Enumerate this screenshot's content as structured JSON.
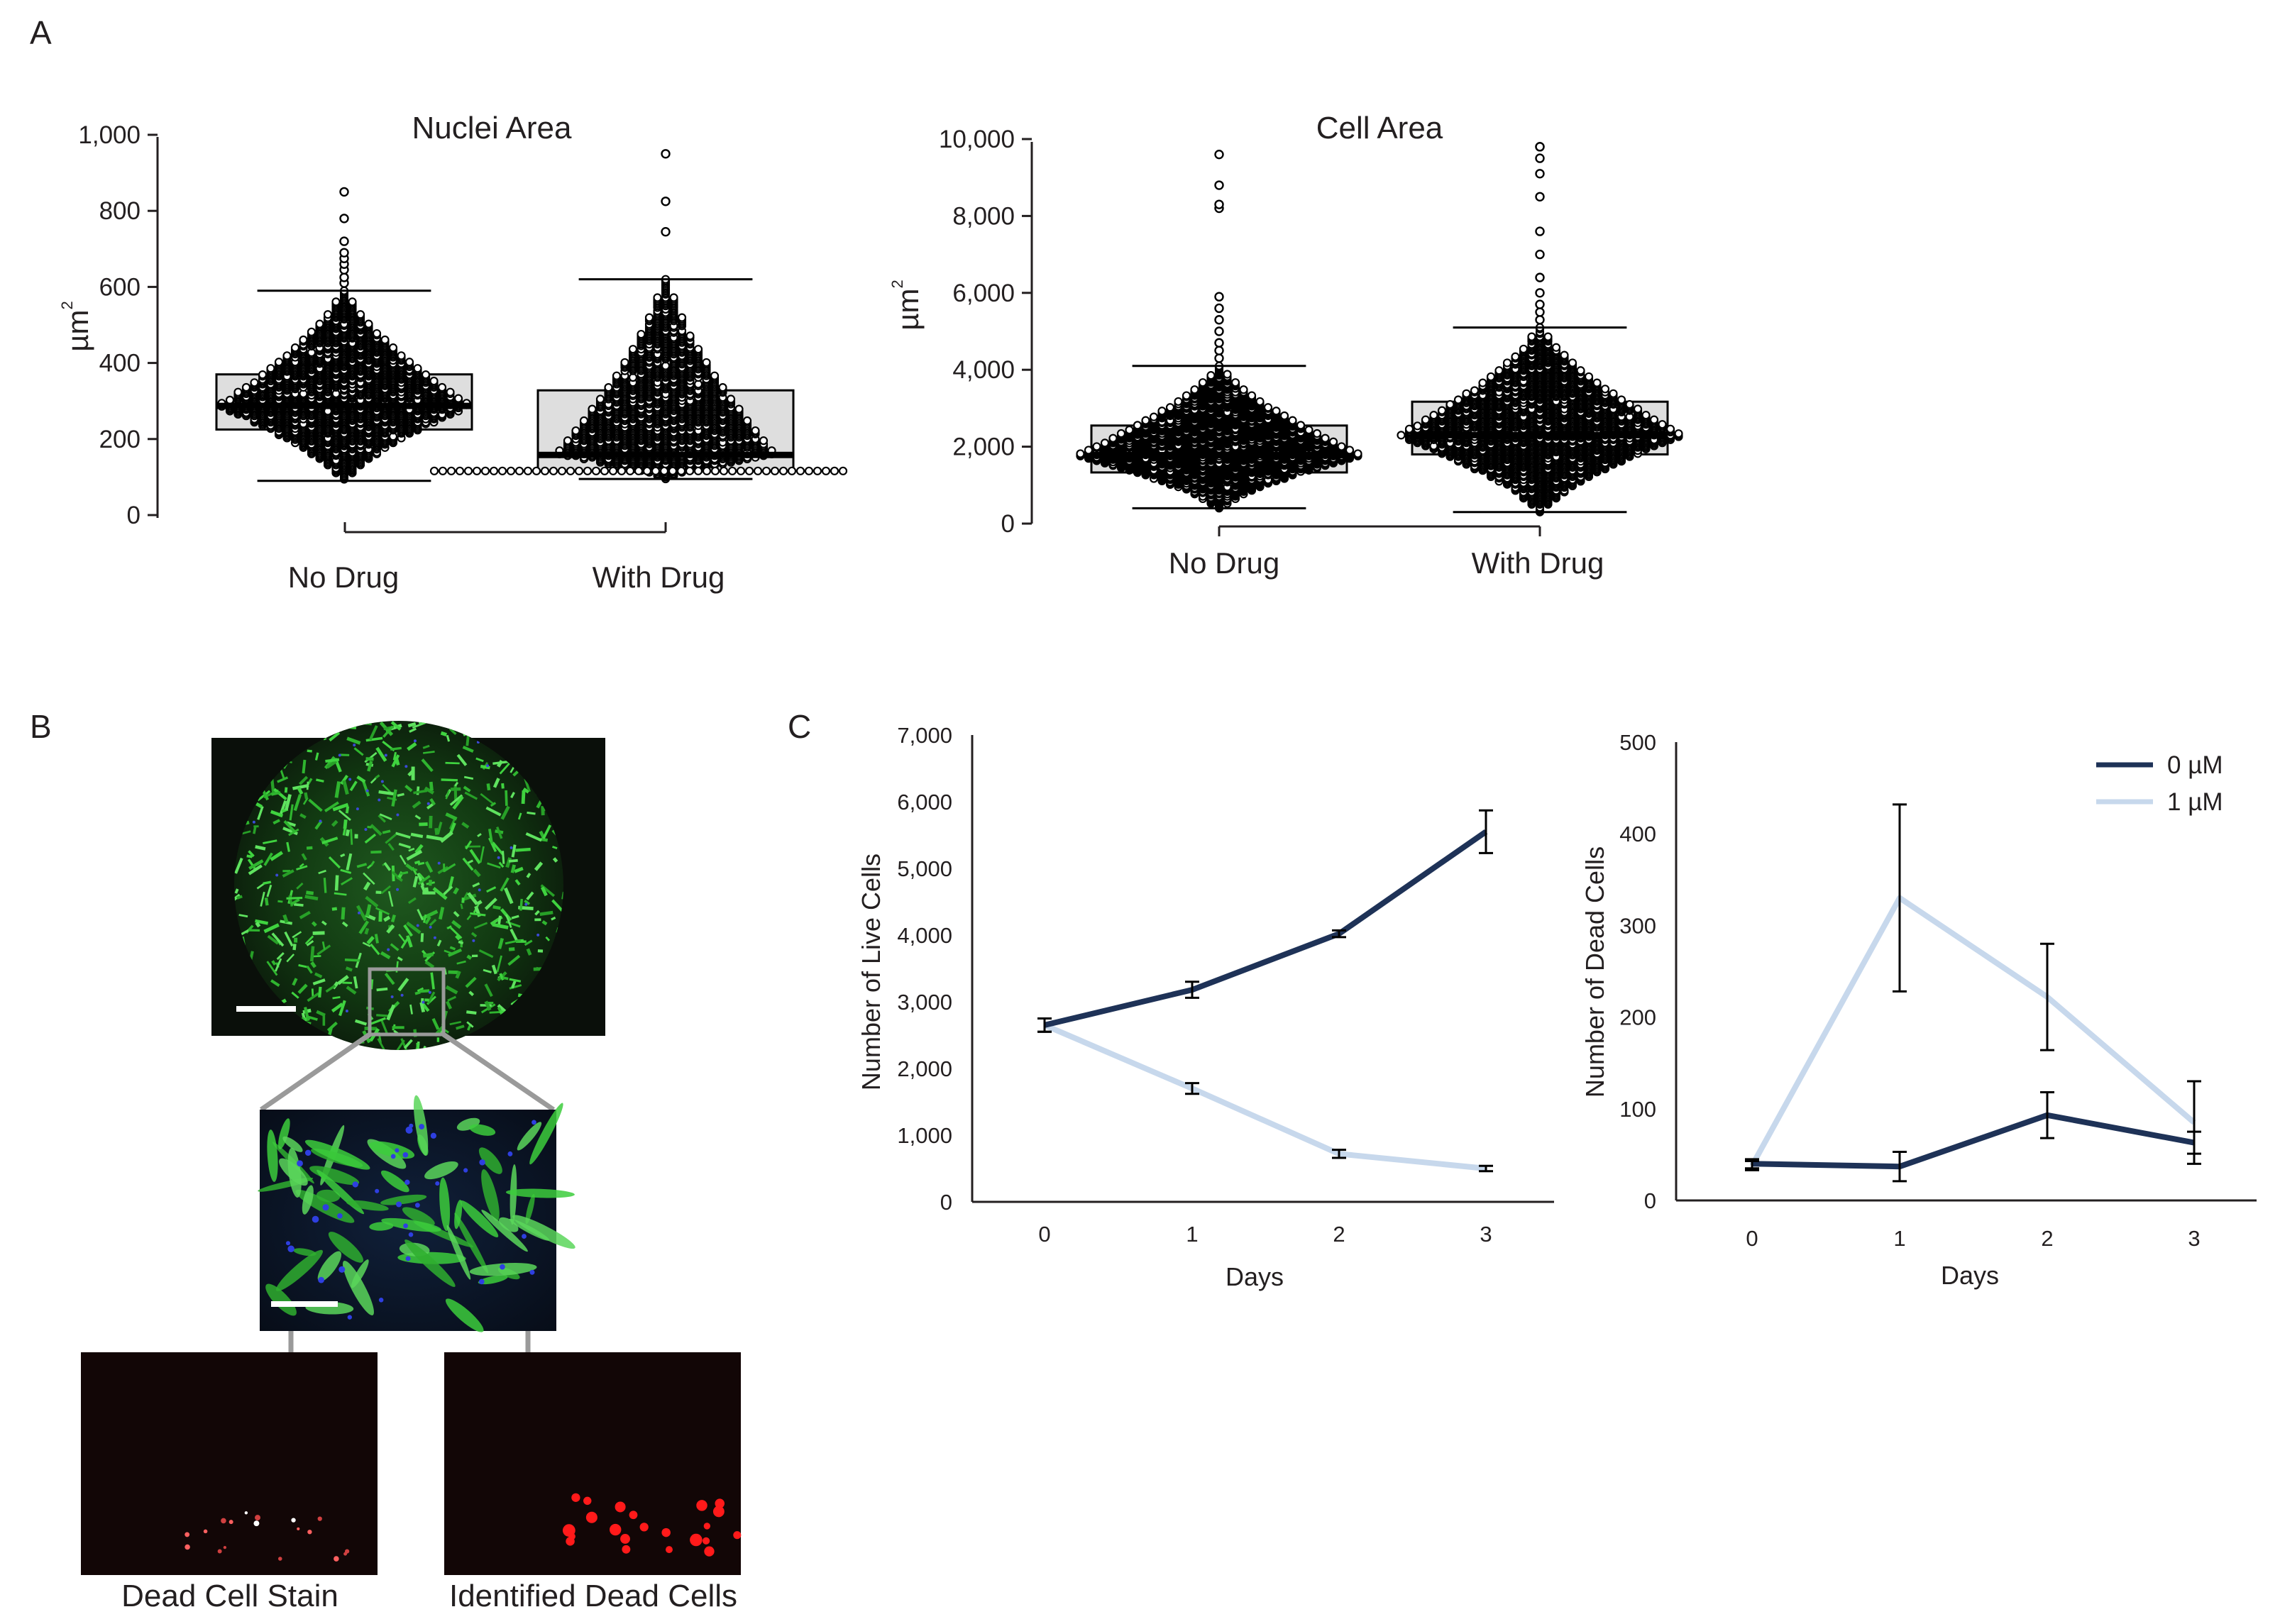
{
  "panel_labels": {
    "a": "A",
    "b": "B",
    "c": "C"
  },
  "colors": {
    "dark_series": "#1e3257",
    "light_series": "#c7d8ec",
    "box_fill": "#d8d8d8",
    "axis": "#231f20"
  },
  "panel_b": {
    "caption_left": "Dead Cell Stain",
    "caption_right": "Identified Dead Cells",
    "images": [
      "overview-green-fluorescence",
      "zoomed-green-fluorescence",
      "dead-cell-stain",
      "identified-dead-cells"
    ]
  },
  "chart_data": [
    {
      "type": "box-swarm",
      "title": "Nuclei Area",
      "ylabel": "µm",
      "ylabel_sup": "2",
      "ylim": [
        0,
        1000
      ],
      "yticks": [
        0,
        200,
        400,
        600,
        800,
        1000
      ],
      "ytick_labels": [
        "0",
        "200",
        "400",
        "600",
        "800",
        "1,000"
      ],
      "categories": [
        "No Drug",
        "With Drug"
      ],
      "boxes": [
        {
          "name": "No Drug",
          "whisker_low": 90,
          "q1": 225,
          "median": 287,
          "q3": 370,
          "whisker_high": 590,
          "outliers": [
            610,
            625,
            645,
            660,
            675,
            690,
            720,
            780,
            850
          ]
        },
        {
          "name": "With Drug",
          "whisker_low": 95,
          "q1": 115,
          "median": 158,
          "q3": 328,
          "whisker_high": 620,
          "outliers": [
            745,
            825,
            950
          ]
        }
      ]
    },
    {
      "type": "box-swarm",
      "title": "Cell Area",
      "ylabel": "µm",
      "ylabel_sup": "2",
      "ylim": [
        0,
        10000
      ],
      "yticks": [
        0,
        2000,
        4000,
        6000,
        8000,
        10000
      ],
      "ytick_labels": [
        "0",
        "2,000",
        "4,000",
        "6,000",
        "8,000",
        "10,000"
      ],
      "categories": [
        "No Drug",
        "With Drug"
      ],
      "boxes": [
        {
          "name": "No Drug",
          "whisker_low": 400,
          "q1": 1330,
          "median": 1780,
          "q3": 2550,
          "whisker_high": 4100,
          "outliers": [
            4300,
            4500,
            4700,
            5000,
            5300,
            5600,
            5900,
            8200,
            8300,
            8800,
            9600
          ]
        },
        {
          "name": "With Drug",
          "whisker_low": 300,
          "q1": 1800,
          "median": 2300,
          "q3": 3170,
          "whisker_high": 5100,
          "outliers": [
            5300,
            5500,
            5700,
            6000,
            6400,
            7000,
            7600,
            8500,
            9100,
            9500,
            9800,
            9800
          ]
        }
      ]
    },
    {
      "type": "line",
      "xlabel": "Days",
      "ylabel": "Number of Live Cells",
      "x": [
        0,
        1,
        2,
        3
      ],
      "ylim": [
        0,
        7000
      ],
      "yticks": [
        0,
        1000,
        2000,
        3000,
        4000,
        5000,
        6000,
        7000
      ],
      "ytick_labels": [
        "0",
        "1,000",
        "2,000",
        "3,000",
        "4,000",
        "5,000",
        "6,000",
        "7,000"
      ],
      "series": [
        {
          "name": "0 µM",
          "values": [
            2650,
            3180,
            4020,
            5550
          ],
          "errors": [
            100,
            120,
            50,
            320
          ]
        },
        {
          "name": "1 µM",
          "values": [
            2650,
            1700,
            720,
            500
          ],
          "errors": [
            100,
            80,
            60,
            40
          ]
        }
      ]
    },
    {
      "type": "line",
      "xlabel": "Days",
      "ylabel": "Number of Dead Cells",
      "x": [
        0,
        1,
        2,
        3
      ],
      "ylim": [
        0,
        500
      ],
      "yticks": [
        0,
        100,
        200,
        300,
        400,
        500
      ],
      "ytick_labels": [
        "0",
        "100",
        "200",
        "300",
        "400",
        "500"
      ],
      "legend": [
        "0 µM",
        "1 µM"
      ],
      "series": [
        {
          "name": "0 µM",
          "values": [
            40,
            37,
            93,
            63
          ],
          "errors": [
            5,
            16,
            25,
            12
          ]
        },
        {
          "name": "1 µM",
          "values": [
            38,
            330,
            222,
            85
          ],
          "errors": [
            5,
            102,
            58,
            45
          ]
        }
      ]
    }
  ]
}
